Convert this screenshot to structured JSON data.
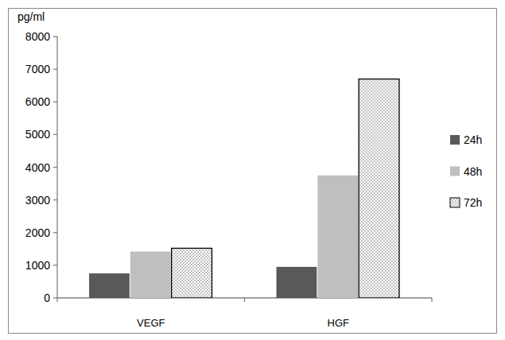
{
  "chart_data": {
    "type": "bar",
    "y_label": "pg/ml",
    "categories": [
      "VEGF",
      "HGF"
    ],
    "series": [
      {
        "name": "24h",
        "color": "#595959",
        "values": [
          750,
          950
        ]
      },
      {
        "name": "48h",
        "color": "#bfbfbf",
        "values": [
          1420,
          3750
        ]
      },
      {
        "name": "72h",
        "color": "#ffffff",
        "values": [
          1520,
          6700
        ]
      }
    ],
    "ylim": [
      0,
      8000
    ],
    "yticks": [
      0,
      1000,
      2000,
      3000,
      4000,
      5000,
      6000,
      7000,
      8000
    ],
    "grid": false,
    "legend": "right"
  }
}
